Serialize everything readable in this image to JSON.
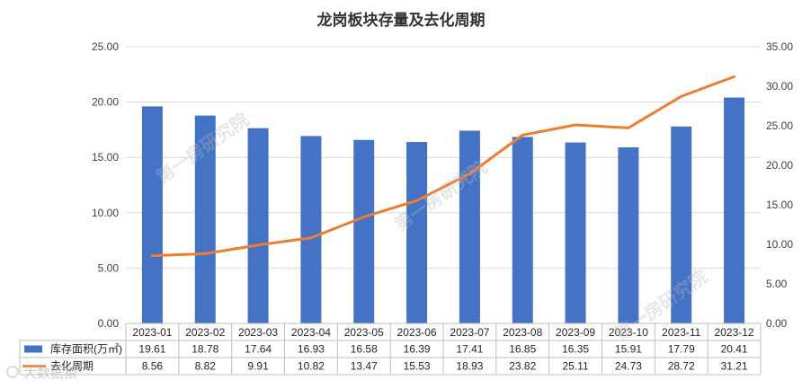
{
  "chart_data": {
    "type": "bar",
    "title": "龙岗板块存量及去化周期",
    "categories": [
      "2023-01",
      "2023-02",
      "2023-03",
      "2023-04",
      "2023-05",
      "2023-06",
      "2023-07",
      "2023-08",
      "2023-09",
      "2023-10",
      "2023-11",
      "2023-12"
    ],
    "series": [
      {
        "name": "库存面积(万㎡)",
        "type": "bar",
        "axis": "left",
        "color": "#4472C4",
        "values": [
          19.61,
          18.78,
          17.64,
          16.93,
          16.58,
          16.39,
          17.41,
          16.85,
          16.35,
          15.91,
          17.79,
          20.41
        ]
      },
      {
        "name": "去化周期",
        "type": "line",
        "axis": "right",
        "color": "#ED7D31",
        "values": [
          8.56,
          8.82,
          9.91,
          10.82,
          13.47,
          15.53,
          18.93,
          23.82,
          25.11,
          24.73,
          28.72,
          31.21
        ]
      }
    ],
    "left_axis": {
      "ylim": [
        0,
        25
      ],
      "ticks": [
        "0.00",
        "5.00",
        "10.00",
        "15.00",
        "20.00",
        "25.00"
      ]
    },
    "right_axis": {
      "ylim": [
        0,
        35
      ],
      "ticks": [
        "0.00",
        "5.00",
        "10.00",
        "15.00",
        "20.00",
        "25.00",
        "30.00",
        "35.00"
      ]
    },
    "grid": true,
    "legend": "data-table-bottom"
  },
  "watermarks": [
    "第一房研究院",
    "第一房研究院",
    "第一房研究院"
  ],
  "logo_text": "大数据猿"
}
